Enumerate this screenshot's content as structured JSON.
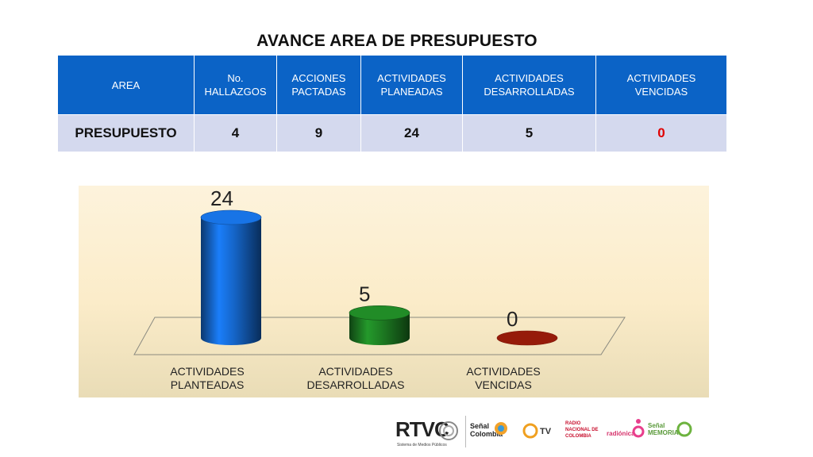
{
  "title": "AVANCE AREA DE PRESUPUESTO",
  "table": {
    "headers": [
      "AREA",
      "No. HALLAZGOS",
      "ACCIONES PACTADAS",
      "ACTIVIDADES PLANEADAS",
      "ACTIVIDADES DESARROLLADAS",
      "ACTIVIDADES VENCIDAS"
    ],
    "row": [
      "PRESUPUESTO",
      "4",
      "9",
      "24",
      "5",
      "0"
    ]
  },
  "chart_data": {
    "type": "bar",
    "style": "3d-cylinder",
    "categories": [
      "ACTIVIDADES PLANTEADAS",
      "ACTIVIDADES DESARROLLADAS",
      "ACTIVIDADES VENCIDAS"
    ],
    "values": [
      24,
      5,
      0
    ],
    "data_labels": [
      "24",
      "5",
      "0"
    ],
    "colors": [
      "#1565c8",
      "#1d7a22",
      "#b0200c"
    ],
    "ylim": [
      0,
      24
    ],
    "grid": false,
    "legend": "none"
  },
  "footer": {
    "logos": [
      "RTVC",
      "Señal Colombia",
      "TV",
      "RADIO NACIONAL DE COLOMBIA",
      "radiónica",
      "Señal MEMORIA"
    ],
    "rtvc_sub": "Sistema de Medios Públicos"
  }
}
